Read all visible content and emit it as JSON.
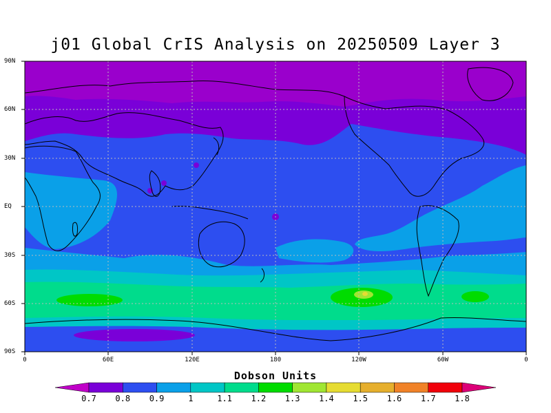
{
  "title": "j01 Global CrIS Analysis on 20250509 Layer 3",
  "lat_ticks": [
    "90N",
    "60N",
    "30N",
    "EQ",
    "30S",
    "60S",
    "90S"
  ],
  "lon_ticks": [
    "0",
    "60E",
    "120E",
    "180",
    "120W",
    "60W",
    "0"
  ],
  "colorbar": {
    "title": "Dobson Units",
    "labels": [
      "0.7",
      "0.8",
      "0.9",
      "1",
      "1.1",
      "1.2",
      "1.3",
      "1.4",
      "1.5",
      "1.6",
      "1.7",
      "1.8"
    ],
    "colors": [
      "#c000c8",
      "#7a00d8",
      "#2d4ef0",
      "#0aa0e8",
      "#00c6c6",
      "#00dc8c",
      "#00dc00",
      "#a0e632",
      "#e6dc32",
      "#e6af2d",
      "#f08228",
      "#f0000a",
      "#dc0078"
    ]
  }
}
